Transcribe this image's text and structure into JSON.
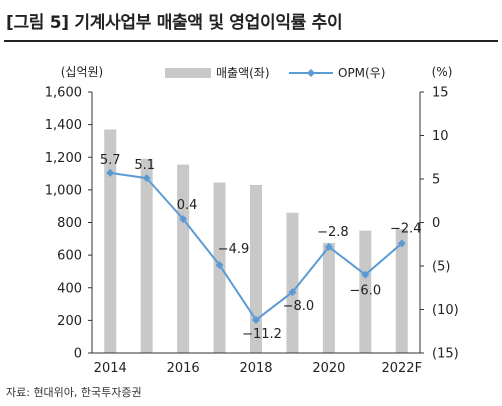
{
  "header": {
    "title": "[그림 5] 기계사업부 매출액 및 영업이익률 추이"
  },
  "footer": {
    "source": "자료: 현대위아, 한국투자증권"
  },
  "chart_data": {
    "type": "bar",
    "categories": [
      "2014",
      "2015",
      "2016",
      "2017",
      "2018",
      "2019",
      "2020",
      "2021",
      "2022F"
    ],
    "x_tick_labels": [
      "2014",
      "2016",
      "2018",
      "2020",
      "2022F"
    ],
    "series": [
      {
        "name": "매출액(좌)",
        "type": "bar",
        "axis": "left",
        "values": [
          1370,
          1190,
          1155,
          1045,
          1030,
          860,
          675,
          750,
          760
        ]
      },
      {
        "name": "OPM(우)",
        "type": "line",
        "axis": "right",
        "values": [
          5.7,
          5.1,
          0.4,
          -4.9,
          -11.2,
          -8.0,
          -2.8,
          -6.0,
          -2.4
        ],
        "labels": [
          "5.7",
          "5.1",
          "0.4",
          "−4.9",
          "−11.2",
          "−8.0",
          "−2.8",
          "−6.0",
          "−2.4"
        ]
      }
    ],
    "left_axis": {
      "unit": "(십억원)",
      "min": 0,
      "max": 1600,
      "step": 200,
      "tick_labels": [
        "0",
        "200",
        "400",
        "600",
        "800",
        "1,000",
        "1,200",
        "1,400",
        "1,600"
      ]
    },
    "right_axis": {
      "unit": "(%)",
      "min": -15,
      "max": 15,
      "step": 5,
      "tick_labels": [
        "(15)",
        "(10)",
        "(5)",
        "0",
        "5",
        "10",
        "15"
      ]
    },
    "legend_position": "top",
    "grid": false,
    "colors": {
      "bar": "#c8c8c8",
      "line": "#5b9bd5",
      "axis": "#333333"
    }
  }
}
